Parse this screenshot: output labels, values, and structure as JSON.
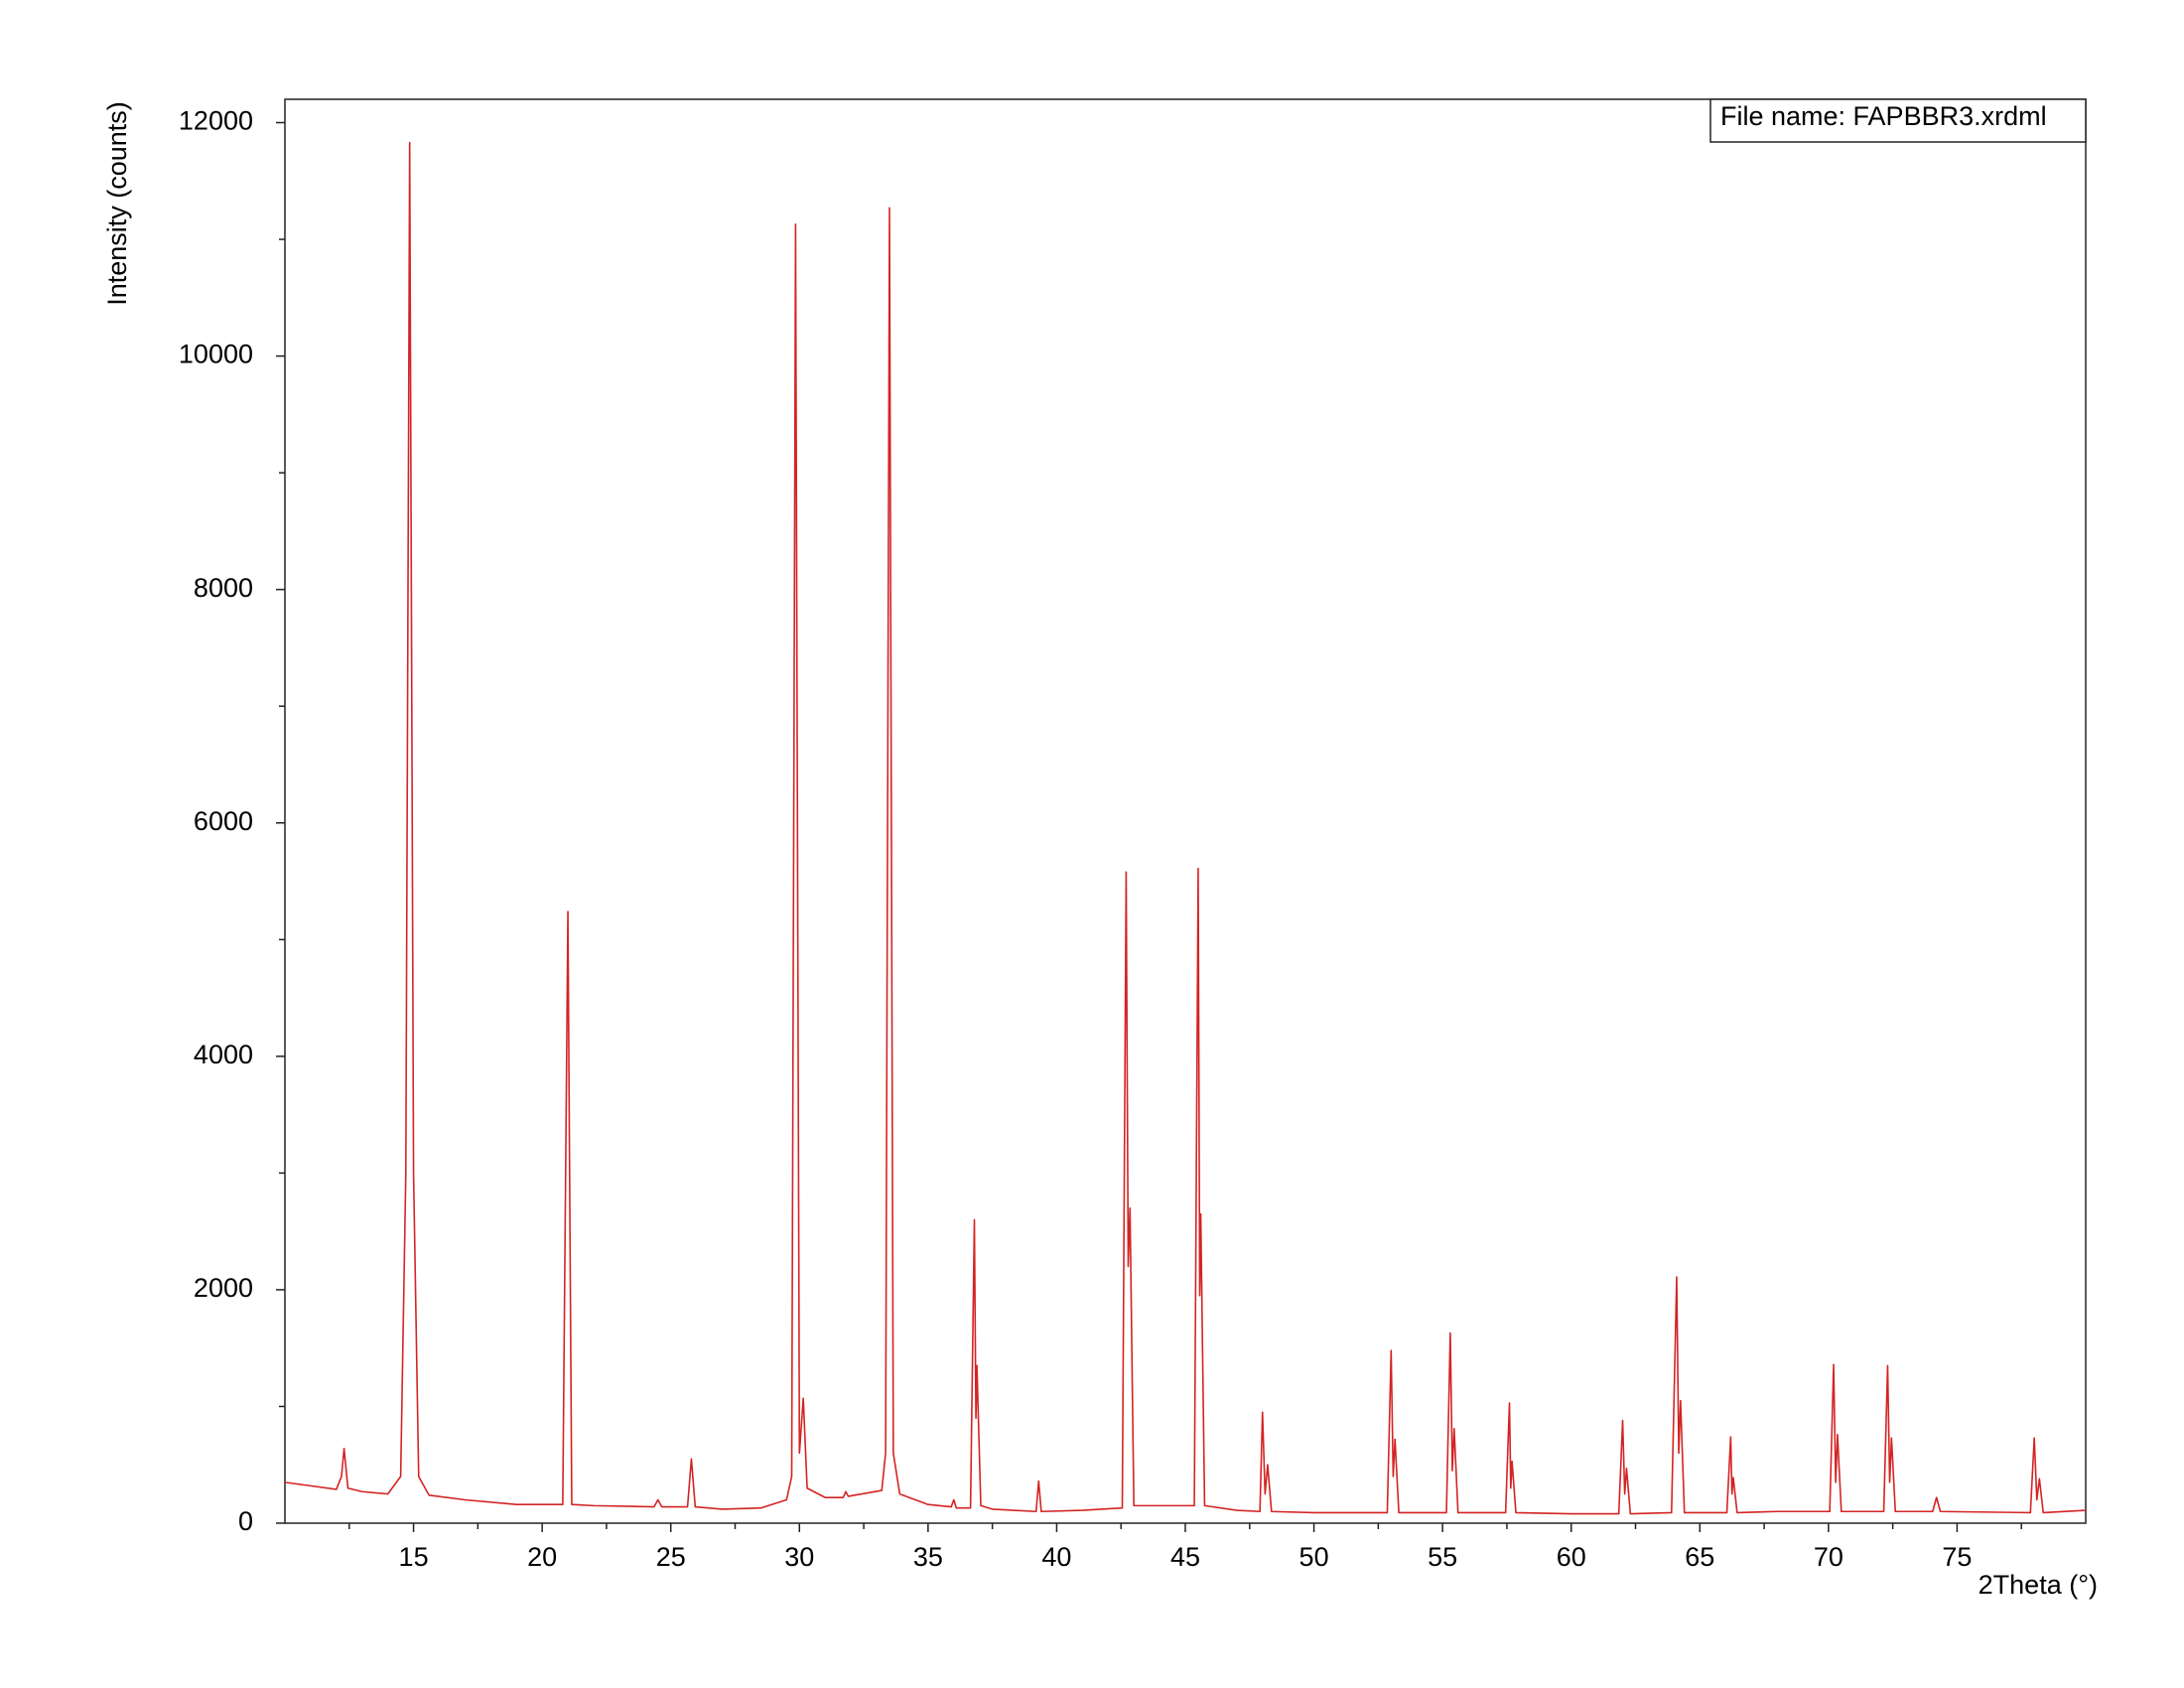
{
  "chart_data": {
    "type": "line",
    "y_label": "Intensity (counts)",
    "x_label": "2Theta (°)",
    "annotation": "File name:  FAPBBR3.xrdml",
    "color": "#d42424",
    "xlim": [
      10,
      80
    ],
    "ylim": [
      0,
      12200
    ],
    "xticks": [
      15,
      20,
      25,
      30,
      35,
      40,
      45,
      50,
      55,
      60,
      65,
      70,
      75
    ],
    "xminorticks": [
      12.5,
      17.5,
      22.5,
      27.5,
      32.5,
      37.5,
      42.5,
      47.5,
      52.5,
      57.5,
      62.5,
      67.5,
      72.5,
      77.5
    ],
    "yticks": [
      0,
      2000,
      4000,
      6000,
      8000,
      10000,
      12000
    ],
    "yminorticks": [
      1000,
      3000,
      5000,
      7000,
      9000,
      11000
    ],
    "x": [
      10,
      11,
      12,
      12.2,
      12.3,
      12.45,
      13,
      14,
      14.5,
      14.7,
      14.85,
      15.0,
      15.2,
      15.6,
      17,
      19,
      20.8,
      21.0,
      21.15,
      22,
      24.35,
      24.5,
      24.65,
      25.65,
      25.8,
      25.95,
      27,
      28.5,
      29.5,
      29.7,
      29.85,
      30.0,
      30.15,
      30.3,
      31,
      31.7,
      31.8,
      31.9,
      33.2,
      33.35,
      33.5,
      33.65,
      33.9,
      35,
      35.9,
      36.0,
      36.1,
      36.65,
      36.8,
      36.86,
      36.9,
      37.05,
      37.5,
      39.2,
      39.3,
      39.4,
      41,
      42.55,
      42.7,
      42.78,
      42.85,
      43.0,
      44,
      45.35,
      45.5,
      45.56,
      45.6,
      45.75,
      47,
      47.9,
      48.0,
      48.1,
      48.2,
      48.35,
      50,
      52.85,
      53.0,
      53.08,
      53.15,
      53.3,
      55.15,
      55.3,
      55.38,
      55.45,
      55.6,
      57.45,
      57.6,
      57.65,
      57.7,
      57.85,
      60,
      61.85,
      62.0,
      62.08,
      62.15,
      62.3,
      63.9,
      64.1,
      64.18,
      64.25,
      64.4,
      66.05,
      66.2,
      66.25,
      66.3,
      66.45,
      68,
      70.05,
      70.2,
      70.28,
      70.35,
      70.5,
      72.15,
      72.3,
      72.38,
      72.45,
      72.6,
      74.05,
      74.2,
      74.35,
      77.85,
      78.0,
      78.1,
      78.2,
      78.35,
      80
    ],
    "values": [
      350,
      320,
      290,
      400,
      640,
      300,
      270,
      250,
      400,
      3000,
      11830,
      3000,
      400,
      240,
      200,
      160,
      160,
      5240,
      160,
      150,
      140,
      200,
      140,
      140,
      550,
      140,
      120,
      130,
      200,
      400,
      11130,
      600,
      1070,
      300,
      220,
      220,
      270,
      230,
      280,
      600,
      11270,
      600,
      250,
      160,
      140,
      200,
      130,
      130,
      2600,
      900,
      1350,
      150,
      120,
      100,
      360,
      100,
      110,
      130,
      5580,
      2200,
      2700,
      150,
      150,
      150,
      5610,
      1950,
      2650,
      150,
      110,
      100,
      950,
      250,
      500,
      100,
      90,
      90,
      1480,
      400,
      720,
      90,
      90,
      1630,
      450,
      810,
      90,
      90,
      1030,
      300,
      530,
      90,
      80,
      80,
      880,
      250,
      470,
      80,
      90,
      2110,
      600,
      1050,
      90,
      90,
      740,
      250,
      390,
      90,
      100,
      100,
      1360,
      350,
      760,
      100,
      100,
      1350,
      350,
      730,
      100,
      100,
      220,
      100,
      90,
      730,
      200,
      380,
      90,
      110
    ]
  }
}
